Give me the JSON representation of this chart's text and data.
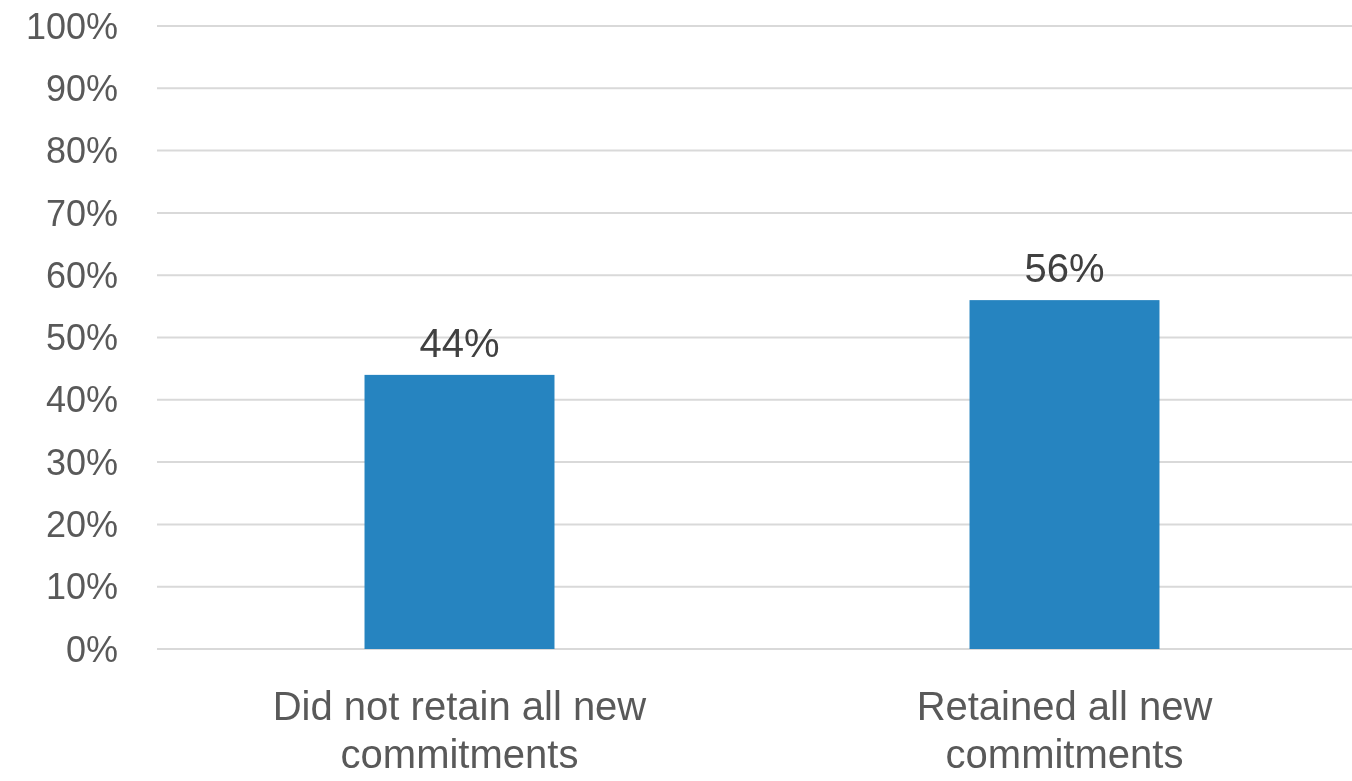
{
  "chart_data": {
    "type": "bar",
    "categories": [
      "Did not retain all new commitments",
      "Retained all new commitments"
    ],
    "values": [
      44,
      56
    ],
    "color": "#2684c0",
    "value_labels": [
      "44%",
      "56%"
    ],
    "ylim": [
      0,
      100
    ],
    "yticks": [
      {
        "value": 0,
        "label": "0%"
      },
      {
        "value": 10,
        "label": "10%"
      },
      {
        "value": 20,
        "label": "20%"
      },
      {
        "value": 30,
        "label": "30%"
      },
      {
        "value": 40,
        "label": "40%"
      },
      {
        "value": 50,
        "label": "50%"
      },
      {
        "value": 60,
        "label": "60%"
      },
      {
        "value": 70,
        "label": "70%"
      },
      {
        "value": 80,
        "label": "80%"
      },
      {
        "value": 90,
        "label": "90%"
      },
      {
        "value": 100,
        "label": "100%"
      }
    ],
    "grid": "y"
  }
}
